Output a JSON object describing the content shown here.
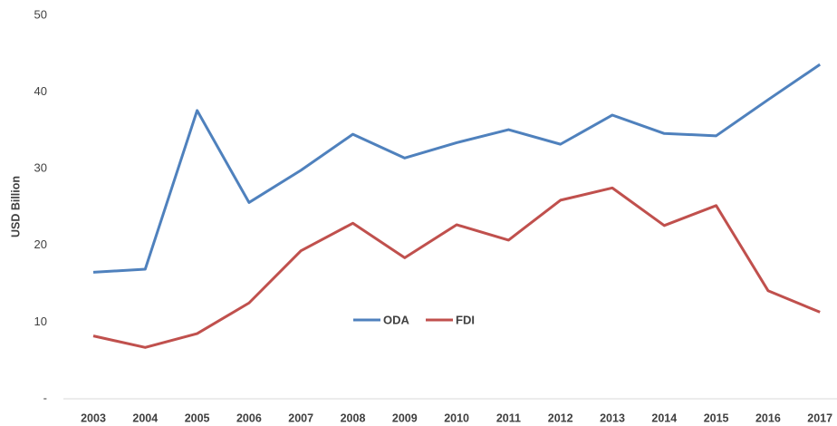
{
  "chart_data": {
    "type": "line",
    "y_label": "USD Billion",
    "categories": [
      "2003",
      "2004",
      "2005",
      "2006",
      "2007",
      "2008",
      "2009",
      "2010",
      "2011",
      "2012",
      "2013",
      "2014",
      "2015",
      "2016",
      "2017"
    ],
    "series": [
      {
        "name": "ODA",
        "color": "#4f81bd",
        "values": [
          16.5,
          16.9,
          37.6,
          25.6,
          29.8,
          34.5,
          31.4,
          33.4,
          35.1,
          33.2,
          37.0,
          34.6,
          34.3,
          39.0,
          43.6
        ]
      },
      {
        "name": "FDI",
        "color": "#c0504d",
        "values": [
          8.2,
          6.7,
          8.5,
          12.5,
          19.3,
          22.9,
          18.4,
          22.7,
          20.7,
          25.9,
          27.5,
          22.6,
          25.2,
          14.1,
          11.3
        ]
      }
    ],
    "ylim": [
      0,
      50
    ],
    "yticks": [
      {
        "value": 0,
        "label": "-"
      },
      10,
      20,
      30,
      40,
      50
    ],
    "legend": "center"
  }
}
